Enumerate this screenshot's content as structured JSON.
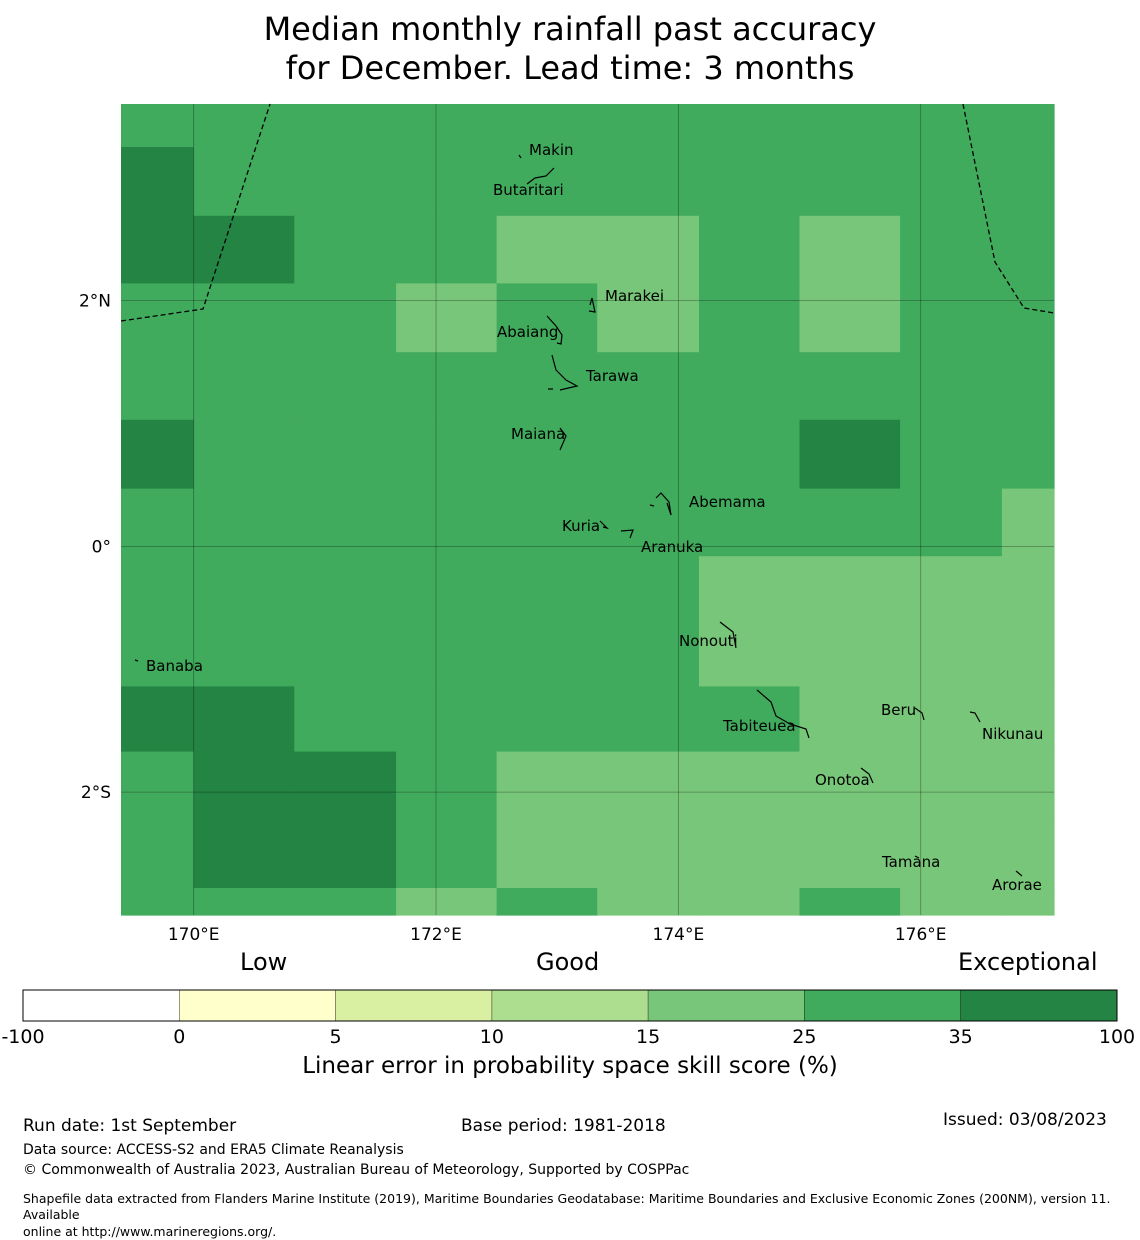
{
  "title": {
    "line1": "Median monthly rainfall past accuracy",
    "line2": "for December. Lead time: 3 months"
  },
  "map": {
    "lon_range": [
      169.4,
      177.1
    ],
    "lat_range": [
      -3.0,
      3.6
    ],
    "x_ticks": [
      {
        "lon": 170,
        "label": "170°E"
      },
      {
        "lon": 172,
        "label": "172°E"
      },
      {
        "lon": 174,
        "label": "174°E"
      },
      {
        "lon": 176,
        "label": "176°E"
      }
    ],
    "y_ticks": [
      {
        "lat": 2,
        "label": "2°N"
      },
      {
        "lat": 0,
        "label": "0°"
      },
      {
        "lat": -2,
        "label": "2°S"
      }
    ],
    "grid_lines": true,
    "grid": {
      "lon_edges": [
        169.4,
        170.0,
        170.83,
        171.67,
        172.5,
        173.33,
        174.17,
        175.0,
        175.83,
        176.67,
        177.1
      ],
      "lat_edges": [
        3.6,
        3.25,
        2.69,
        2.14,
        1.58,
        1.03,
        0.47,
        -0.08,
        -1.14,
        -1.67,
        -2.22,
        -2.78,
        -3.0
      ],
      "colors": {
        "A": "#78c679",
        "B": "#41ab5d",
        "C": "#238443"
      },
      "levels": {
        "A": "15-25",
        "B": "25-35",
        "C": "35-100"
      },
      "cells": [
        "BBBBBBBBBB",
        "CBBBBBBBBB",
        "CCBBAABABB",
        "BBBABABABB",
        "BBBBBBBBBB",
        "CBBBBBBCBB",
        "BBBBBBBBBA",
        "BBBBBBAAAA",
        "CCBBBBBAAA",
        "BCCBAAAAAA",
        "BCCBAAAAAA",
        "BBBABAABAA"
      ]
    },
    "islands": [
      {
        "name": "Makin"
      },
      {
        "name": "Butaritari"
      },
      {
        "name": "Marakei"
      },
      {
        "name": "Abaiang"
      },
      {
        "name": "Tarawa"
      },
      {
        "name": "Maiana"
      },
      {
        "name": "Abemama"
      },
      {
        "name": "Kuria"
      },
      {
        "name": "Aranuka"
      },
      {
        "name": "Nonouti"
      },
      {
        "name": "Banaba"
      },
      {
        "name": "Tabiteuea"
      },
      {
        "name": "Beru"
      },
      {
        "name": "Nikunau"
      },
      {
        "name": "Onotoa"
      },
      {
        "name": "Tamana"
      },
      {
        "name": "Arorae"
      }
    ]
  },
  "colorbar": {
    "categories": [
      "Low",
      "Good",
      "Exceptional"
    ],
    "boundaries": [
      "-100",
      "0",
      "5",
      "10",
      "15",
      "25",
      "35",
      "100"
    ],
    "colors": [
      "#ffffff",
      "#ffffcc",
      "#d9f0a3",
      "#addd8e",
      "#78c679",
      "#41ab5d",
      "#238443"
    ],
    "label": "Linear error in probability space skill score (%)"
  },
  "footer": {
    "run_date": "Run date: 1st September",
    "base_period": "Base period: 1981-2018",
    "issued": "Issued: 03/08/2023",
    "data_source": "Data source: ACCESS-S2 and ERA5 Climate Reanalysis",
    "copyright": "© Commonwealth of Australia 2023, Australian Bureau of Meteorology, Supported by COSPPac",
    "shapefile_line1": "Shapefile data extracted from Flanders Marine Institute (2019), Maritime Boundaries Geodatabase: Maritime Boundaries and Exclusive Economic Zones (200NM), version 11. Available",
    "shapefile_line2": "online at http://www.marineregions.org/."
  }
}
